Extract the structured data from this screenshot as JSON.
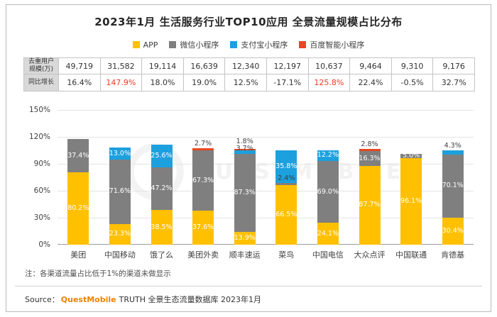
{
  "title": "2023年1月 生活服务行业TOP10应用 全景流量规模占比分布",
  "legend": [
    {
      "label": "APP",
      "color": "#FFC000"
    },
    {
      "label": "微信小程序",
      "color": "#7F7F7F"
    },
    {
      "label": "支付宝小程序",
      "color": "#1CA0DE"
    },
    {
      "label": "百度智能小程序",
      "color": "#E8471D"
    }
  ],
  "table": {
    "row1_label": "去重用户规模(万)",
    "row2_label": "同比增长",
    "users": [
      "49,719",
      "31,582",
      "19,114",
      "16,639",
      "12,340",
      "12,197",
      "10,637",
      "9,464",
      "9,310",
      "9,176"
    ],
    "growth": [
      "16.4%",
      "147.9%",
      "18.0%",
      "19.0%",
      "12.5%",
      "-17.1%",
      "125.8%",
      "22.4%",
      "-0.5%",
      "32.7%"
    ],
    "growth_highlighted": [
      1,
      6
    ],
    "highlight_color": "#F5391F"
  },
  "chart_data": {
    "type": "bar",
    "stacked": true,
    "title": "2023年1月 生活服务行业TOP10应用 全景流量规模占比分布",
    "categories": [
      "美团",
      "中国移动",
      "饿了么",
      "美团外卖",
      "顺丰速运",
      "菜鸟",
      "中国电信",
      "大众点评",
      "中国联通",
      "肯德基"
    ],
    "series": [
      {
        "name": "APP",
        "color": "#FFC000",
        "values": [
          80.2,
          23.3,
          38.5,
          37.6,
          13.9,
          66.5,
          24.1,
          87.7,
          96.1,
          30.4
        ]
      },
      {
        "name": "微信小程序",
        "color": "#7F7F7F",
        "values": [
          37.4,
          71.6,
          47.2,
          67.3,
          87.3,
          2.4,
          69.0,
          16.3,
          5.0,
          70.1
        ]
      },
      {
        "name": "支付宝小程序",
        "color": "#1CA0DE",
        "values": [
          0,
          13.0,
          25.6,
          0,
          3.7,
          35.8,
          12.2,
          0,
          0,
          4.3
        ]
      },
      {
        "name": "百度智能小程序",
        "color": "#E8471D",
        "values": [
          0,
          0,
          0,
          2.7,
          1.8,
          0,
          0,
          2.8,
          0,
          0
        ]
      }
    ],
    "xlabel": "",
    "ylabel": "",
    "ylim": [
      0,
      150
    ],
    "yticks": [
      "0%",
      "30%",
      "60%",
      "90%",
      "120%",
      "150%"
    ],
    "grid": true,
    "legend_position": "top",
    "unit": "%"
  },
  "note": "注：各渠道流量占比低于1%的渠道未做显示",
  "source": {
    "prefix": "Source：",
    "brand": "QuestMobile",
    "rest": "TRUTH 全景生态流量数据库 2023年1月"
  },
  "watermark": "QUESTMOBILE"
}
